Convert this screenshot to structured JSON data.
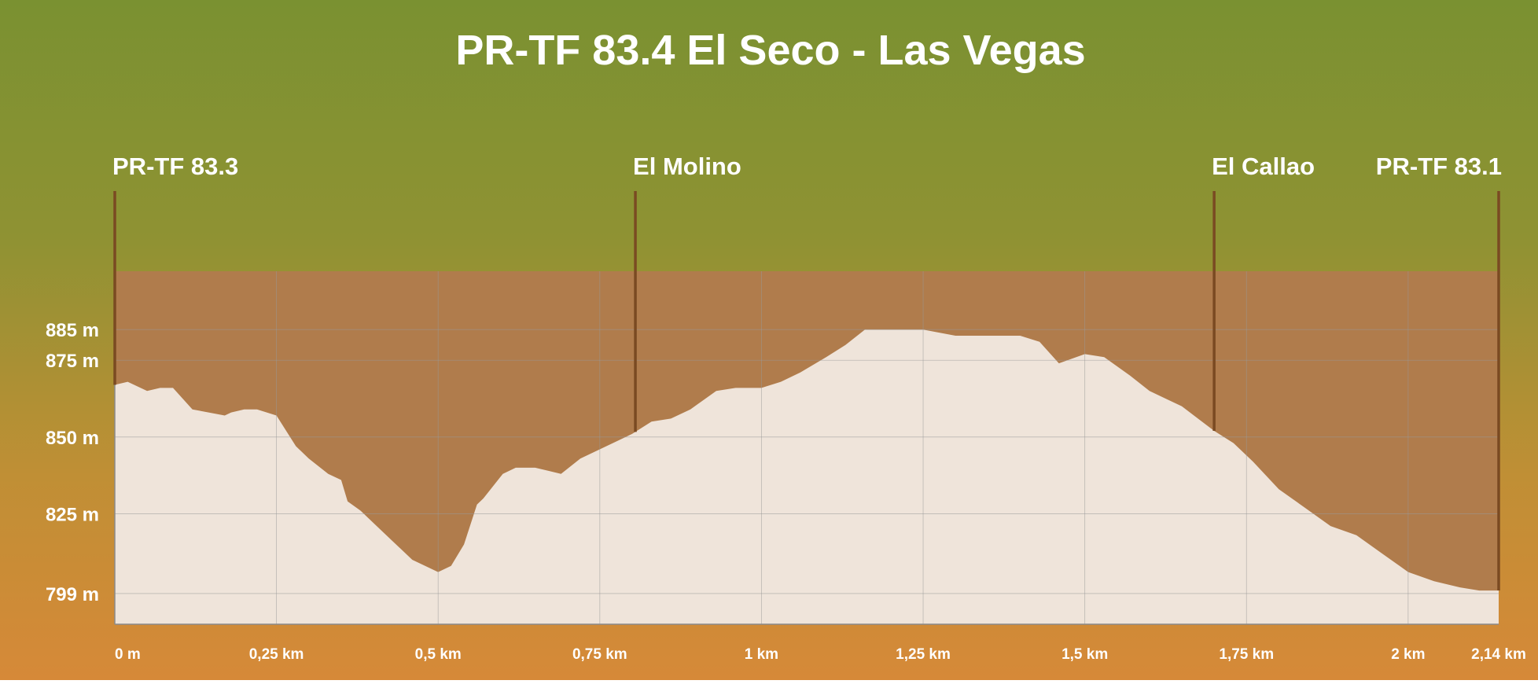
{
  "chart_data": {
    "type": "area",
    "title": "PR-TF 83.4  El Seco - Las Vegas",
    "xlabel": "",
    "ylabel": "",
    "xlim": [
      0,
      2.14
    ],
    "ylim": [
      789,
      904
    ],
    "x_ticks": [
      {
        "value": 0,
        "label": "0 m"
      },
      {
        "value": 0.25,
        "label": "0,25 km"
      },
      {
        "value": 0.5,
        "label": "0,5 km"
      },
      {
        "value": 0.75,
        "label": "0,75 km"
      },
      {
        "value": 1,
        "label": "1 km"
      },
      {
        "value": 1.25,
        "label": "1,25 km"
      },
      {
        "value": 1.5,
        "label": "1,5 km"
      },
      {
        "value": 1.75,
        "label": "1,75 km"
      },
      {
        "value": 2,
        "label": "2 km"
      },
      {
        "value": 2.14,
        "label": "2,14 km"
      }
    ],
    "y_ticks": [
      {
        "value": 799,
        "label": "799 m"
      },
      {
        "value": 825,
        "label": "825 m"
      },
      {
        "value": 850,
        "label": "850 m"
      },
      {
        "value": 875,
        "label": "875 m"
      },
      {
        "value": 885,
        "label": "885 m"
      }
    ],
    "grid": true,
    "waypoints": [
      {
        "x": 0,
        "label": "PR-TF 83.3"
      },
      {
        "x": 0.805,
        "label": "El Molino"
      },
      {
        "x": 1.7,
        "label": "El Callao"
      },
      {
        "x": 2.14,
        "label": "PR-TF 83.1"
      }
    ],
    "series": [
      {
        "x": [
          0,
          0.02,
          0.05,
          0.07,
          0.09,
          0.12,
          0.17,
          0.18,
          0.2,
          0.22,
          0.25,
          0.28,
          0.3,
          0.33,
          0.35,
          0.36,
          0.38,
          0.4,
          0.43,
          0.46,
          0.5,
          0.52,
          0.54,
          0.56,
          0.57,
          0.6,
          0.62,
          0.65,
          0.67,
          0.69,
          0.72,
          0.75,
          0.78,
          0.8,
          0.83,
          0.86,
          0.89,
          0.93,
          0.96,
          1,
          1.03,
          1.06,
          1.1,
          1.13,
          1.16,
          1.18,
          1.2,
          1.25,
          1.3,
          1.35,
          1.4,
          1.43,
          1.46,
          1.5,
          1.53,
          1.57,
          1.6,
          1.65,
          1.7,
          1.73,
          1.76,
          1.8,
          1.84,
          1.88,
          1.92,
          1.96,
          2,
          2.04,
          2.08,
          2.11,
          2.14
        ],
        "y": [
          867,
          868,
          865,
          866,
          866,
          859,
          857,
          858,
          859,
          859,
          857,
          847,
          843,
          838,
          836,
          829,
          826,
          822,
          816,
          810,
          806,
          808,
          815,
          828,
          830,
          838,
          840,
          840,
          839,
          838,
          843,
          846,
          849,
          851,
          855,
          856,
          859,
          865,
          866,
          866,
          868,
          871,
          876,
          880,
          885,
          885,
          885,
          885,
          883,
          883,
          883,
          881,
          874,
          877,
          876,
          870,
          865,
          860,
          852,
          848,
          842,
          833,
          827,
          821,
          818,
          812,
          806,
          803,
          801,
          800,
          800
        ]
      }
    ]
  }
}
